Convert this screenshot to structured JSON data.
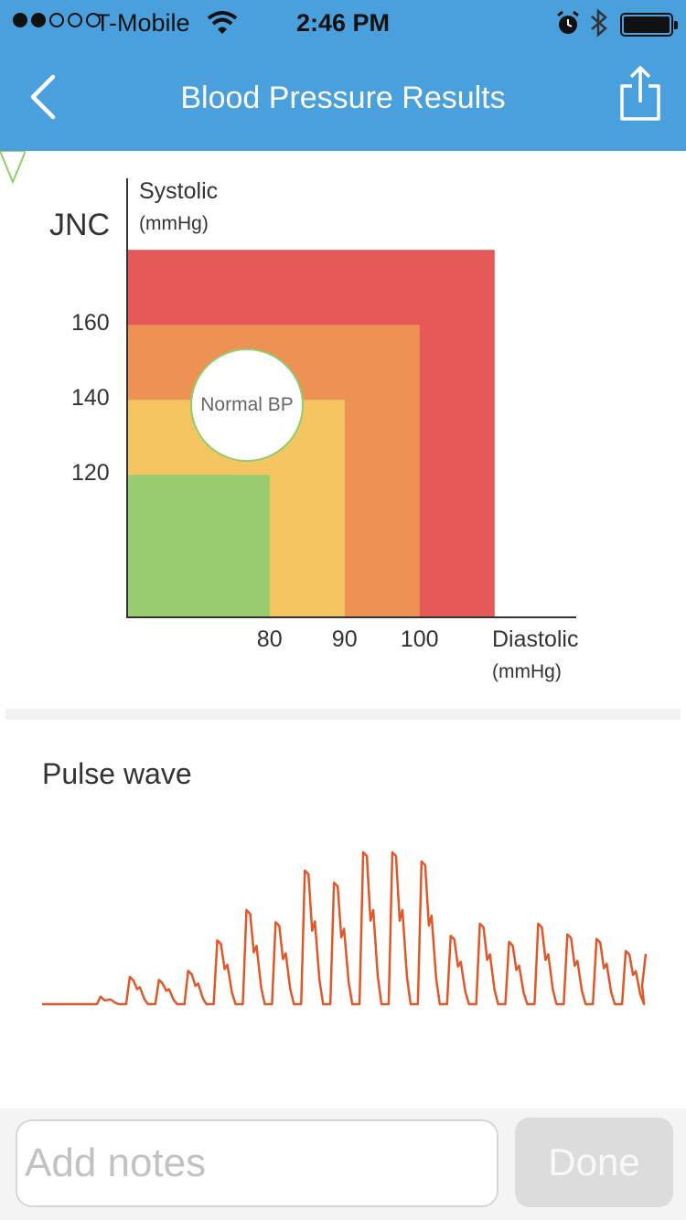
{
  "status_bar": {
    "signal_bars_filled": 2,
    "signal_bars_total": 5,
    "carrier": "T-Mobile",
    "time": "2:46 PM",
    "battery_level": 1.0,
    "icons": [
      "wifi-icon",
      "alarm-icon",
      "bluetooth-icon",
      "battery-icon"
    ]
  },
  "nav": {
    "title": "Blood Pressure Results",
    "back_icon": "chevron-left-icon",
    "share_icon": "share-icon"
  },
  "jnc_chart": {
    "title": "JNC",
    "y_label": "Systolic",
    "y_unit": "(mmHg)",
    "x_label": "Diastolic",
    "x_unit": "(mmHg)",
    "bubble_label": "Normal BP"
  },
  "chart_data": {
    "type": "area",
    "y_ticks": [
      "120",
      "140",
      "160"
    ],
    "x_ticks": [
      "80",
      "90",
      "100"
    ],
    "zones": [
      {
        "diastolic_max": 110,
        "systolic_max": 180,
        "color": "#e55a58"
      },
      {
        "diastolic_max": 100,
        "systolic_max": 160,
        "color": "#ee9154"
      },
      {
        "diastolic_max": 90,
        "systolic_max": 140,
        "color": "#f5c562"
      },
      {
        "diastolic_max": 80,
        "systolic_max": 120,
        "color": "#98cc6e"
      }
    ]
  },
  "pulse_wave": {
    "title": "Pulse wave",
    "color": "#e0572a",
    "peaks": [
      0.05,
      0.18,
      0.16,
      0.22,
      0.42,
      0.62,
      0.54,
      0.88,
      0.8,
      1.0,
      1.0,
      0.94,
      0.45,
      0.53,
      0.41,
      0.53,
      0.46,
      0.43,
      0.35
    ]
  },
  "bottom": {
    "notes_placeholder": "Add notes",
    "done_label": "Done"
  }
}
